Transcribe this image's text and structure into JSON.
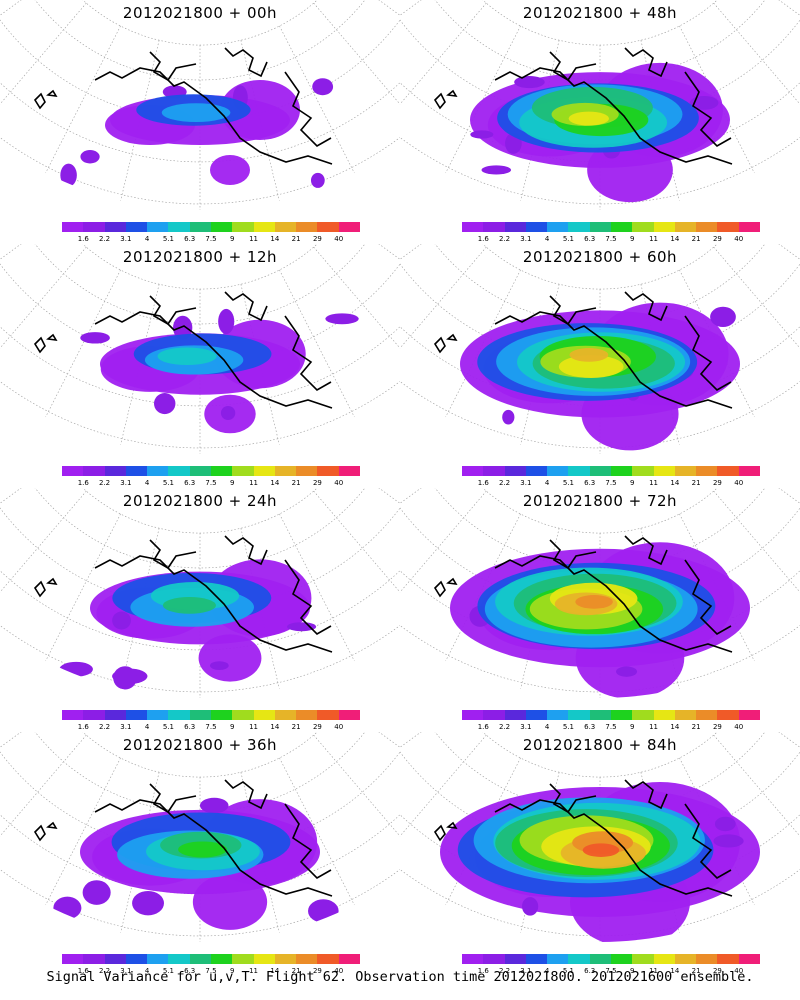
{
  "panels": [
    {
      "title": "2012021800 + 00h",
      "lead": 0
    },
    {
      "title": "2012021800 + 48h",
      "lead": 48
    },
    {
      "title": "2012021800 + 12h",
      "lead": 12
    },
    {
      "title": "2012021800 + 60h",
      "lead": 60
    },
    {
      "title": "2012021800 + 24h",
      "lead": 24
    },
    {
      "title": "2012021800 + 72h",
      "lead": 72
    },
    {
      "title": "2012021800 + 36h",
      "lead": 36
    },
    {
      "title": "2012021800 + 84h",
      "lead": 84
    }
  ],
  "colorbar": {
    "ticks": [
      "1.6",
      "2.2",
      "3.1",
      "4",
      "5.1",
      "6.3",
      "7.5",
      "9",
      "11",
      "14",
      "21",
      "29",
      "40"
    ],
    "colors": [
      "#a020f0",
      "#8c1ee6",
      "#5a28dc",
      "#1e50e6",
      "#1ea0f0",
      "#14c8c8",
      "#1ebe78",
      "#1ed21e",
      "#a0dc1e",
      "#e6e614",
      "#e6b428",
      "#eb8c28",
      "#f05a28",
      "#f01e78"
    ]
  },
  "footer": "Signal Variance for u,v,T. Flight 62. Observation time 2012021800. 2012021600 ensemble."
}
